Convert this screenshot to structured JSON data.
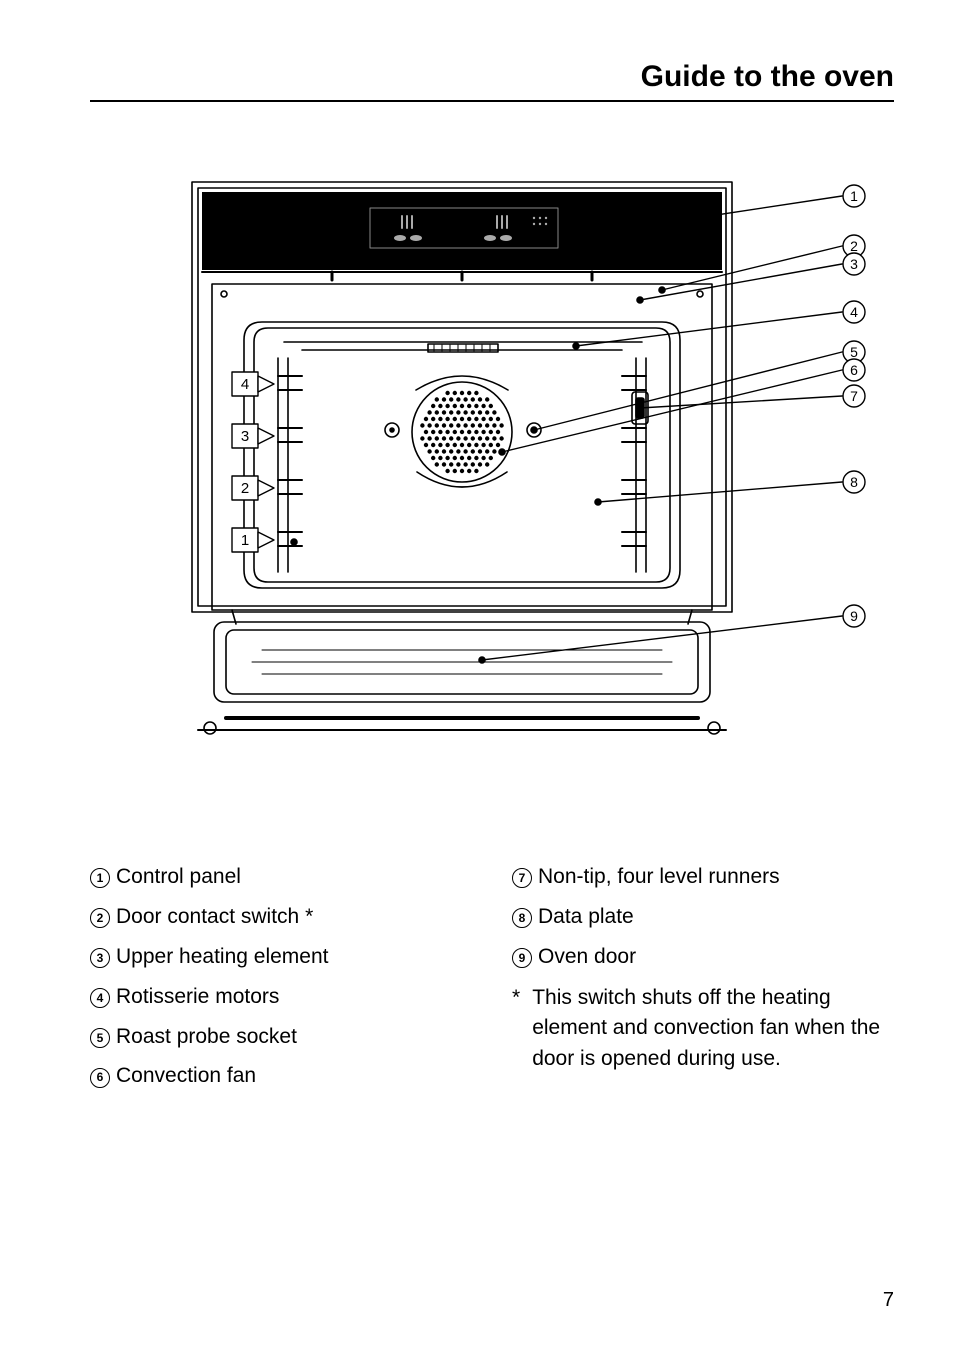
{
  "title": "Guide to the oven",
  "pagenum": "7",
  "callouts": [
    "1",
    "2",
    "3",
    "4",
    "5",
    "6",
    "7",
    "8",
    "9"
  ],
  "rack_labels": [
    "4",
    "3",
    "2",
    "1"
  ],
  "legend_left": [
    {
      "n": "1",
      "t": "Control panel"
    },
    {
      "n": "2",
      "t": "Door contact switch *"
    },
    {
      "n": "3",
      "t": "Upper heating element"
    },
    {
      "n": "4",
      "t": "Rotisserie motors"
    },
    {
      "n": "5",
      "t": "Roast probe socket"
    },
    {
      "n": "6",
      "t": "Convection fan"
    }
  ],
  "legend_right": [
    {
      "n": "7",
      "t": "Non-tip, four level runners"
    },
    {
      "n": "8",
      "t": "Data plate"
    },
    {
      "n": "9",
      "t": "Oven door"
    }
  ],
  "footnote_marker": "*",
  "footnote_text": "This switch shuts off the heating element and convection fan when the door is opened during use.",
  "colors": {
    "stroke": "#000000",
    "bg": "#ffffff",
    "panel": "#000000",
    "panel_detail": "#aaaaaa"
  },
  "stroke_width": 1.6
}
